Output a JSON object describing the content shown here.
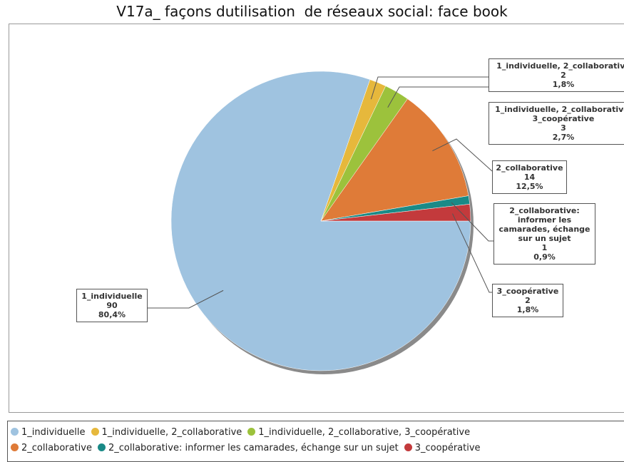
{
  "chart_data": {
    "type": "pie",
    "title": "V17a_ façons dutilisation  de réseaux social: face book",
    "categories": [
      "1_individuelle",
      "1_individuelle, 2_collaborative",
      "1_individuelle, 2_collaborative, 3_coopérative",
      "2_collaborative",
      "2_collaborative:  informer les camarades, échange sur un sujet",
      "3_coopérative"
    ],
    "values": [
      80.4,
      1.8,
      2.7,
      12.5,
      0.9,
      1.8
    ],
    "value_labels": [
      "80,4%",
      "1,8%",
      "2,7%",
      "12,5%",
      "0,9%",
      "1,8%"
    ],
    "counts": [
      90,
      2,
      3,
      14,
      1,
      2
    ],
    "colors": [
      "#9fc3e0",
      "#e6b83c",
      "#9cc23c",
      "#df7b38",
      "#1a8a87",
      "#c33a3c"
    ]
  }
}
